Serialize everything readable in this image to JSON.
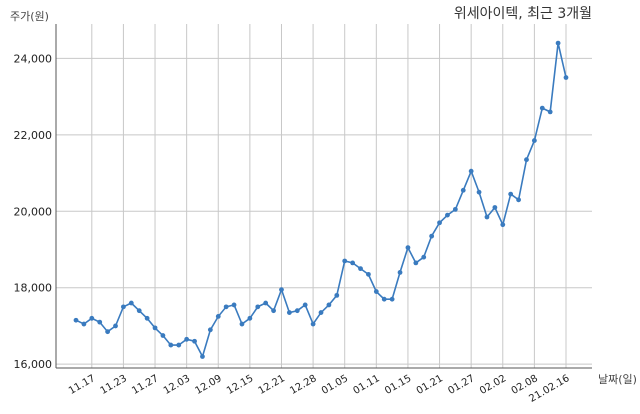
{
  "chart_data": {
    "type": "line",
    "title": "위세아이텍, 최근 3개월",
    "ylabel": "주가(원)",
    "xlabel": "날짜(일)",
    "ylim": [
      15900,
      24900
    ],
    "yticks": [
      16000,
      18000,
      20000,
      22000,
      24000
    ],
    "ytick_labels": [
      "16,000",
      "18,000",
      "20,000",
      "22,000",
      "24,000"
    ],
    "grid": true,
    "line_color": "#3a7bbf",
    "xtick_labels": [
      "11.17",
      "11.23",
      "11.27",
      "12.03",
      "12.09",
      "12.15",
      "12.21",
      "12.28",
      "01.05",
      "01.11",
      "01.15",
      "01.21",
      "01.27",
      "02.02",
      "02.08",
      "21.02.16"
    ],
    "xtick_index": [
      2,
      6,
      10,
      14,
      18,
      22,
      26,
      30,
      34,
      38,
      42,
      46,
      50,
      54,
      58,
      62
    ],
    "series": [
      {
        "values": [
          17150,
          17050,
          17200,
          17100,
          16850,
          17000,
          17500,
          17600,
          17400,
          17200,
          16950,
          16750,
          16500,
          16500,
          16650,
          16600,
          16200,
          16900,
          17250,
          17500,
          17550,
          17050,
          17200,
          17500,
          17600,
          17400,
          17950,
          17350,
          17400,
          17550,
          17050,
          17350,
          17550,
          17800,
          18700,
          18650,
          18500,
          18350,
          17900,
          17700,
          17700,
          18400,
          19050,
          18650,
          18800,
          19350,
          19700,
          19900,
          20050,
          20550,
          21050,
          20500,
          19850,
          20100,
          19650,
          20450,
          20300,
          21350,
          21850,
          22700,
          22600,
          24400,
          23500
        ]
      }
    ]
  }
}
